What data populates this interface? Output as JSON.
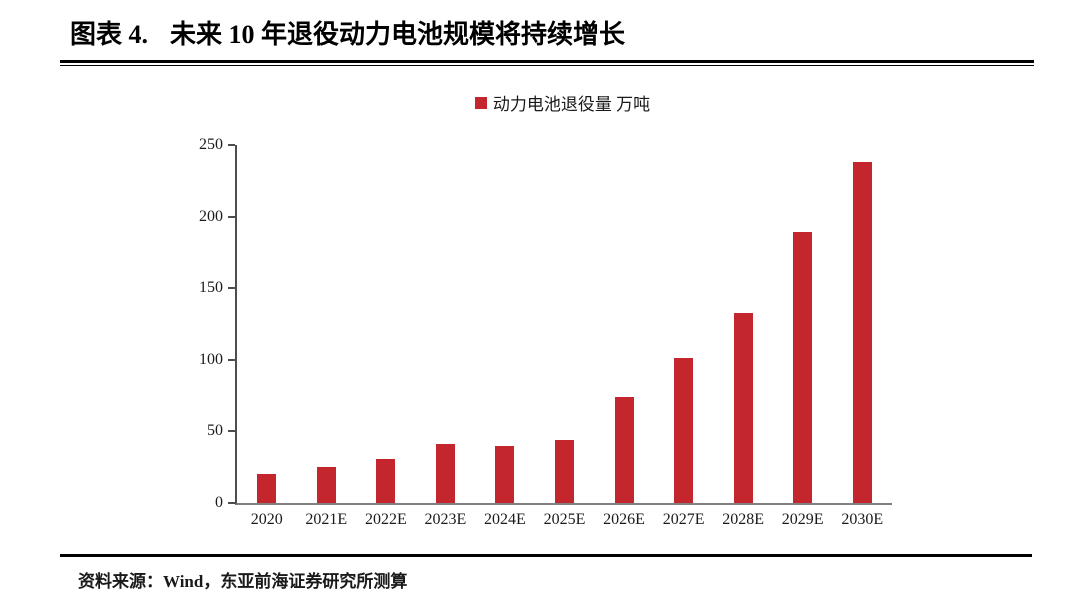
{
  "header": {
    "figure_label": "图表 4.",
    "title": "未来 10 年退役动力电池规模将持续增长"
  },
  "chart_data": {
    "type": "bar",
    "title": "未来 10 年退役动力电池规模将持续增长",
    "legend": "动力电池退役量 万吨",
    "legend_position": "top-center",
    "categories": [
      "2020",
      "2021E",
      "2022E",
      "2023E",
      "2024E",
      "2025E",
      "2026E",
      "2027E",
      "2028E",
      "2029E",
      "2030E"
    ],
    "values": [
      20,
      25,
      31,
      41,
      40,
      44,
      74,
      101,
      133,
      189,
      238
    ],
    "xlabel": "",
    "ylabel": "万吨",
    "ylim": [
      0,
      250
    ],
    "ytick_step": 50,
    "yticks": [
      0,
      50,
      100,
      150,
      200,
      250
    ],
    "grid": false,
    "bar_color": "#C4262E",
    "axis_color": "#4d4d4d"
  },
  "footer": {
    "source": "资料来源：Wind，东亚前海证券研究所测算"
  }
}
